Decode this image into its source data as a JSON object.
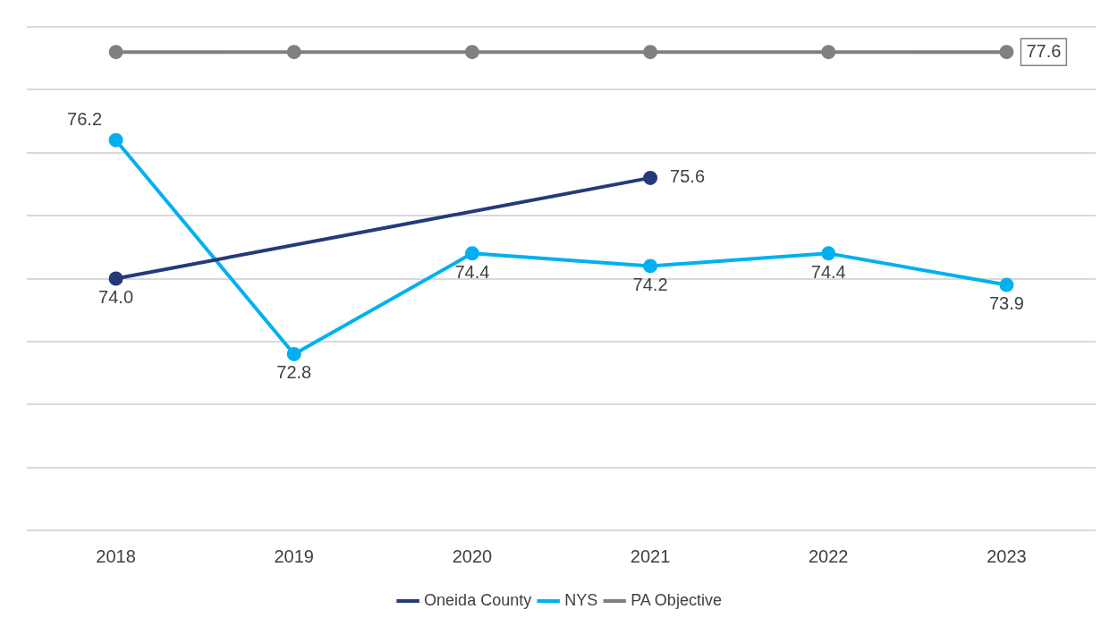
{
  "chart_data": {
    "type": "line",
    "categories": [
      "2018",
      "2019",
      "2020",
      "2021",
      "2022",
      "2023"
    ],
    "series": [
      {
        "name": "Oneida County",
        "color": "#253a7a",
        "values": [
          74.0,
          null,
          null,
          75.6,
          null,
          null
        ],
        "value_labels": [
          "74.0",
          null,
          null,
          "75.6",
          null,
          null
        ]
      },
      {
        "name": "NYS",
        "color": "#00b0f0",
        "values": [
          76.2,
          72.8,
          74.4,
          74.2,
          74.4,
          73.9
        ],
        "value_labels": [
          "76.2",
          "72.8",
          "74.4",
          "74.2",
          "74.4",
          "73.9"
        ]
      },
      {
        "name": "PA Objective",
        "color": "#808080",
        "values": [
          77.6,
          77.6,
          77.6,
          77.6,
          77.6,
          77.6
        ],
        "value_labels": [
          null,
          null,
          null,
          null,
          null,
          "77.6"
        ]
      }
    ],
    "ylim": [
      70,
      78
    ],
    "yticks": [
      {
        "value": 70,
        "label": null
      },
      {
        "value": 71,
        "label": null
      },
      {
        "value": 72,
        "label": null
      },
      {
        "value": 73,
        "label": null
      },
      {
        "value": 74,
        "label": null
      },
      {
        "value": 75,
        "label": null
      },
      {
        "value": 76,
        "label": null
      },
      {
        "value": 77,
        "label": null
      },
      {
        "value": 78,
        "label": null
      }
    ],
    "tick_labels": "x",
    "grid": "y",
    "legend": "bottom",
    "marker": "circle",
    "line_style": "solid"
  }
}
